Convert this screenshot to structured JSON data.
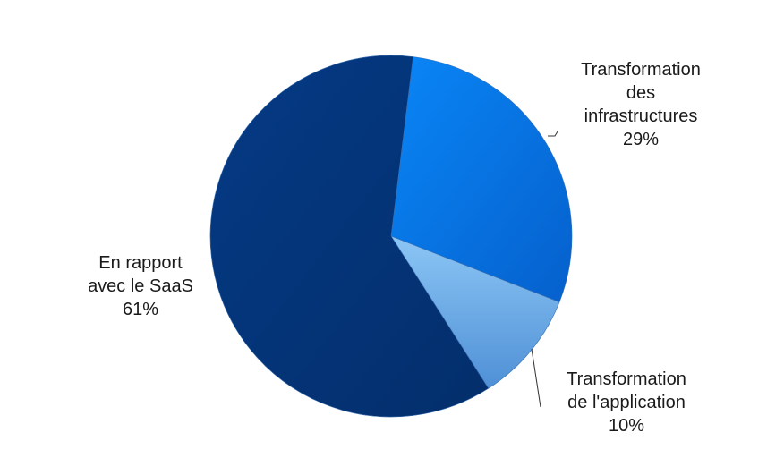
{
  "chart_data": {
    "type": "pie",
    "title": "",
    "slices": [
      {
        "label_lines": [
          "Transformation",
          "des",
          "infrastructures"
        ],
        "value": 29,
        "value_label": "29%",
        "color": "#0a74e6"
      },
      {
        "label_lines": [
          "Transformation",
          "de l'application"
        ],
        "value": 10,
        "value_label": "10%",
        "color": "#6aaee8"
      },
      {
        "label_lines": [
          "En rapport",
          "avec  le SaaS"
        ],
        "value": 61,
        "value_label": "61%",
        "color": "#05397f"
      }
    ],
    "start_angle_deg": 7,
    "legend": "none",
    "labels": "outside"
  }
}
